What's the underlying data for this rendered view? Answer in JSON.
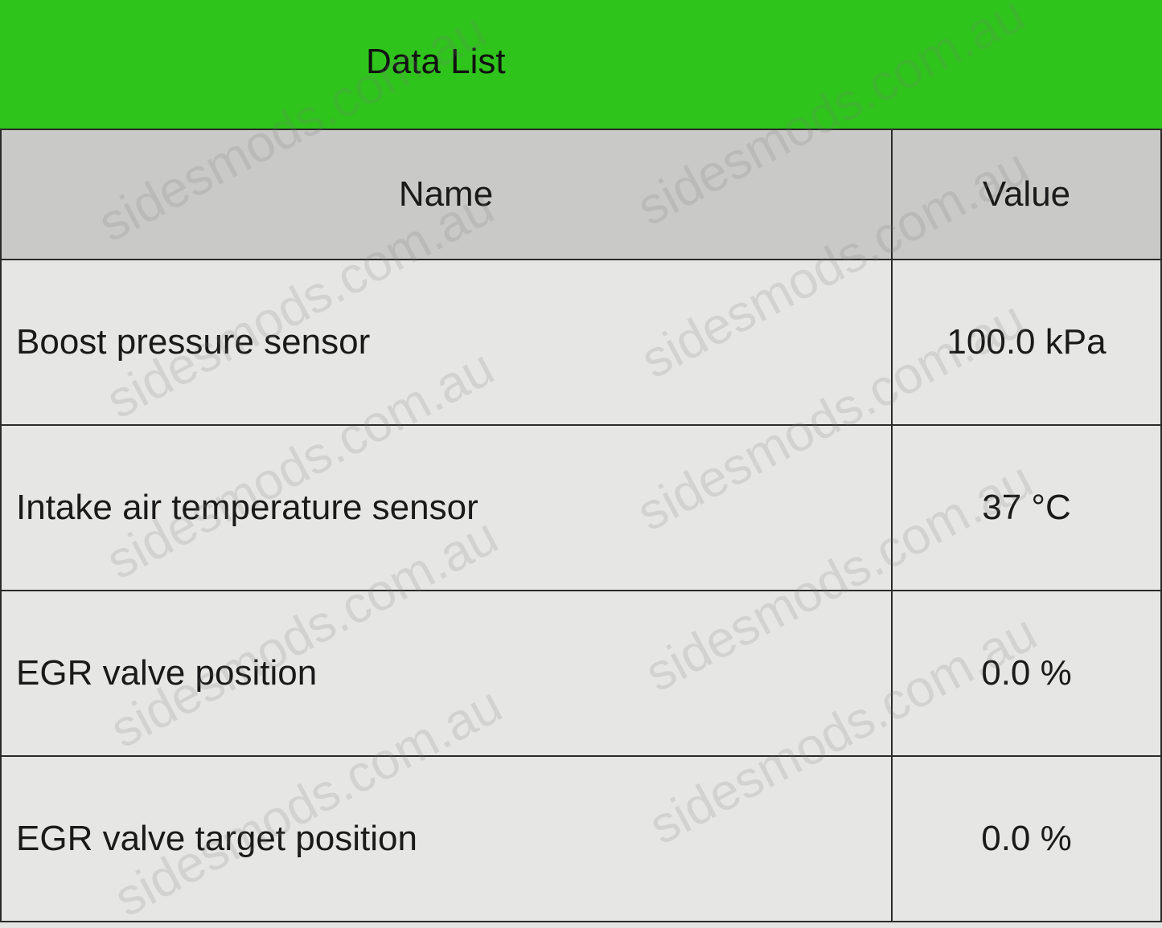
{
  "header": {
    "title": "Data List",
    "color": "#2fc41c"
  },
  "table": {
    "columns": [
      "Name",
      "Value"
    ],
    "rows": [
      {
        "name": "Boost pressure sensor",
        "value": "100.0 kPa"
      },
      {
        "name": "Intake air temperature sensor",
        "value": "37 °C"
      },
      {
        "name": "EGR valve position",
        "value": "0.0 %"
      },
      {
        "name": "EGR valve target position",
        "value": "0.0 %"
      }
    ]
  },
  "watermark": "sidesmods.com.au"
}
